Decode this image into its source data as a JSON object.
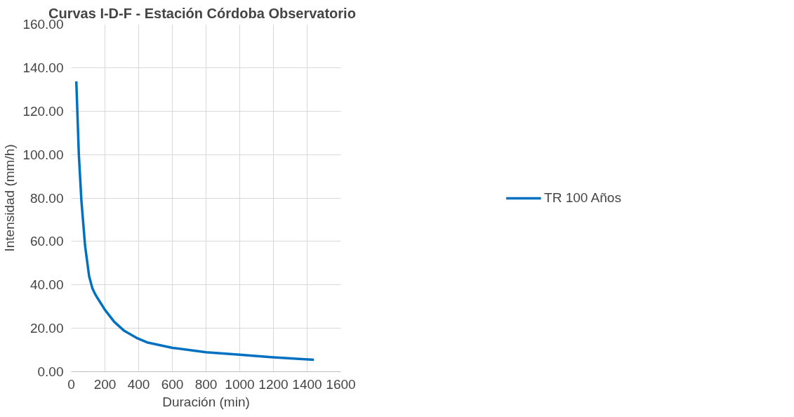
{
  "chart_data": {
    "type": "line",
    "title": "Curvas I-D-F  -  Estación Córdoba Observatorio",
    "xlabel": "Duración (min)",
    "ylabel": "Intensidad (mm/h)",
    "series": [
      {
        "name": "TR 100 Años",
        "color": "#0070c0",
        "x": [
          30,
          45,
          60,
          82,
          106,
          125,
          140,
          155,
          200,
          255,
          315,
          395,
          450,
          600,
          800,
          1000,
          1200,
          1440
        ],
        "values": [
          133.7,
          100,
          79,
          58,
          44,
          38.5,
          36,
          34,
          28.5,
          23,
          18.8,
          15.3,
          13.5,
          11,
          9,
          7.8,
          6.6,
          5.5
        ]
      }
    ],
    "xlim": [
      0,
      1600
    ],
    "xticks": [
      0,
      200,
      400,
      600,
      800,
      1000,
      1200,
      1400,
      1600
    ],
    "ylim": [
      0,
      160
    ],
    "yticks": [
      {
        "value": 0,
        "label": "0.00"
      },
      {
        "value": 20,
        "label": "20.00"
      },
      {
        "value": 40,
        "label": "40.00"
      },
      {
        "value": 60,
        "label": "60.00"
      },
      {
        "value": 80,
        "label": "80.00"
      },
      {
        "value": 100,
        "label": "100.00"
      },
      {
        "value": 120,
        "label": "120.00"
      },
      {
        "value": 140,
        "label": "140.00"
      },
      {
        "value": 160,
        "label": "160.00"
      }
    ],
    "grid": true,
    "legend": "right",
    "marker": "none",
    "line_style": "solid"
  }
}
